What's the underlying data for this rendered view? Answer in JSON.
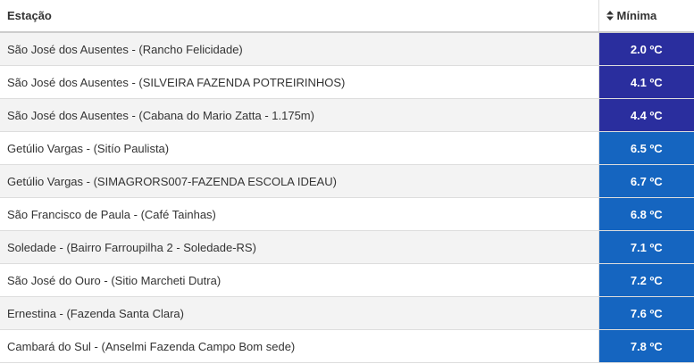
{
  "table": {
    "header": {
      "station": "Estação",
      "min": "Mínima"
    },
    "rows": [
      {
        "station": "São José dos Ausentes - (Rancho Felicidade)",
        "min": "2.0 ºC",
        "color": "#2a2e9e"
      },
      {
        "station": "São José dos Ausentes - (SILVEIRA FAZENDA POTREIRINHOS)",
        "min": "4.1 ºC",
        "color": "#2a2e9e"
      },
      {
        "station": "São José dos Ausentes - (Cabana do Mario Zatta - 1.175m)",
        "min": "4.4 ºC",
        "color": "#2a2e9e"
      },
      {
        "station": "Getúlio Vargas - (Sitío Paulista)",
        "min": "6.5 ºC",
        "color": "#1565c0"
      },
      {
        "station": "Getúlio Vargas - (SIMAGRORS007-FAZENDA ESCOLA IDEAU)",
        "min": "6.7 ºC",
        "color": "#1565c0"
      },
      {
        "station": "São Francisco de Paula - (Café Tainhas)",
        "min": "6.8 ºC",
        "color": "#1565c0"
      },
      {
        "station": "Soledade - (Bairro Farroupilha 2 - Soledade-RS)",
        "min": "7.1 ºC",
        "color": "#1565c0"
      },
      {
        "station": "São José do Ouro - (Sitio Marcheti Dutra)",
        "min": "7.2 ºC",
        "color": "#1565c0"
      },
      {
        "station": "Ernestina - (Fazenda Santa Clara)",
        "min": "7.6 ºC",
        "color": "#1565c0"
      },
      {
        "station": "Cambará do Sul - (Anselmi Fazenda Campo Bom sede)",
        "min": "7.8 ºC",
        "color": "#1565c0"
      }
    ]
  }
}
